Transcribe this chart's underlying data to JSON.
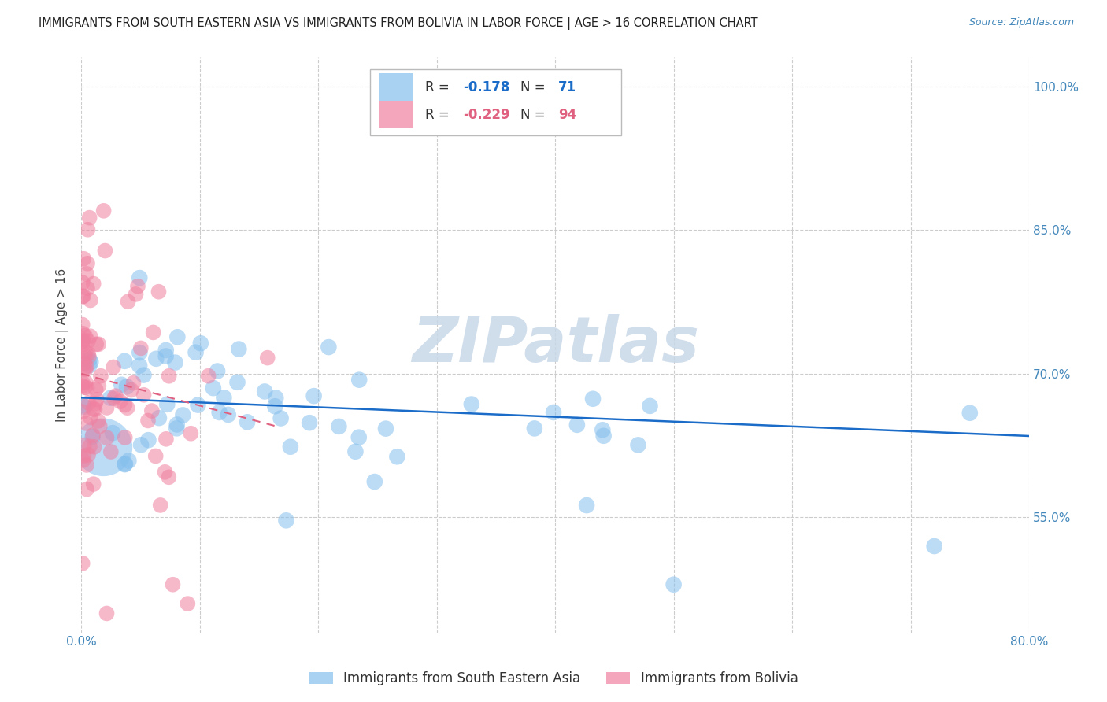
{
  "title": "IMMIGRANTS FROM SOUTH EASTERN ASIA VS IMMIGRANTS FROM BOLIVIA IN LABOR FORCE | AGE > 16 CORRELATION CHART",
  "source": "Source: ZipAtlas.com",
  "ylabel": "In Labor Force | Age > 16",
  "xlim": [
    0.0,
    0.8
  ],
  "ylim": [
    0.43,
    1.03
  ],
  "ytick_vals": [
    0.55,
    0.7,
    0.85,
    1.0
  ],
  "right_yticklabels": [
    "55.0%",
    "70.0%",
    "85.0%",
    "100.0%"
  ],
  "grid_color": "#cccccc",
  "background_color": "#ffffff",
  "watermark": "ZIPatlas",
  "watermark_color": "#c8d8e8",
  "blue_color": "#85BFED",
  "pink_color": "#F080A0",
  "trend_blue_color": "#1A6CC8",
  "trend_pink_color": "#E06080",
  "blue_trend_x0": 0.0,
  "blue_trend_x1": 0.8,
  "blue_trend_y0": 0.675,
  "blue_trend_y1": 0.635,
  "pink_trend_x0": 0.0,
  "pink_trend_x1": 0.165,
  "pink_trend_y0": 0.7,
  "pink_trend_y1": 0.645,
  "legend_r1": "-0.178",
  "legend_n1": "71",
  "legend_r2": "-0.229",
  "legend_n2": "94",
  "title_fontsize": 10.5,
  "source_fontsize": 9,
  "axis_label_color": "#4488BB",
  "axis_label_fontsize": 11
}
